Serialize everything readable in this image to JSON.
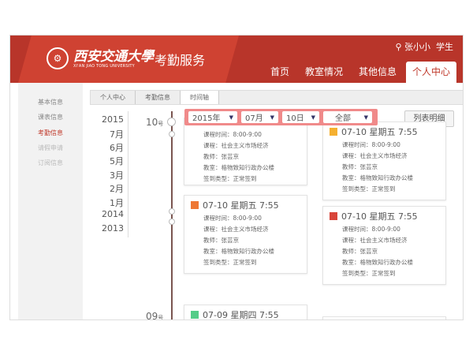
{
  "header": {
    "logo_text": "西安交通大學",
    "logo_subtitle": "XI'AN JIAO TONG UNIVERSITY",
    "service": "考勤服务",
    "user_icon": "user-icon",
    "user_name": "张小小",
    "user_role": "学生",
    "nav": [
      {
        "label": "首页"
      },
      {
        "label": "教室情况"
      },
      {
        "label": "其他信息"
      },
      {
        "label": "个人中心",
        "active": true
      }
    ]
  },
  "sidebar": {
    "items": [
      {
        "label": "基本信息"
      },
      {
        "label": "课表信息"
      },
      {
        "label": "考勤信息",
        "active": true
      },
      {
        "label": "请假申请"
      },
      {
        "label": "订阅信息"
      }
    ]
  },
  "breadcrumb": [
    "个人中心",
    "考勤信息",
    "时间轴"
  ],
  "years": [
    "2015",
    "7月",
    "6月",
    "5月",
    "3月",
    "2月",
    "1月",
    "2014",
    "2013"
  ],
  "days": [
    {
      "num": "10",
      "suffix": "号"
    },
    {
      "num": "09",
      "suffix": "号"
    }
  ],
  "filter": {
    "year": "2015年",
    "month": "07月",
    "day": "10日",
    "type": "全部"
  },
  "list_button": "列表明细",
  "colors": {
    "accent": "#b8352a",
    "filter": "#f08a8a",
    "timeline": "#7a5550"
  },
  "cards": [
    {
      "title": "",
      "icon_color": "#f0a030",
      "lines": [
        "课程时间：8:00-9:00",
        "课程：社会主义市场经济",
        "教师：张芸京",
        "教室：格物致知行政办公楼",
        "签到类型：正常签到"
      ]
    },
    {
      "title": "07-10 星期五 7:55",
      "icon_color": "#f5b030",
      "lines": [
        "课程时间：8:00-9:00",
        "课程：社会主义市场经济",
        "教师：张芸京",
        "教室：格物致知行政办公楼",
        "签到类型：正常签到"
      ]
    },
    {
      "title": "07-10 星期五 7:55",
      "icon_color": "#ee7733",
      "lines": [
        "课程时间：8:00-9:00",
        "课程：社会主义市场经济",
        "教师：张芸京",
        "教室：格物致知行政办公楼",
        "签到类型：正常签到"
      ]
    },
    {
      "title": "07-10 星期五 7:55",
      "icon_color": "#d9453a",
      "lines": [
        "课程时间：8:00-9:00",
        "课程：社会主义市场经济",
        "教师：张芸京",
        "教室：格物致知行政办公楼",
        "签到类型：正常签到"
      ]
    },
    {
      "title": "07-09 星期四 7:55",
      "icon_color": "#55cc88",
      "lines": []
    }
  ]
}
